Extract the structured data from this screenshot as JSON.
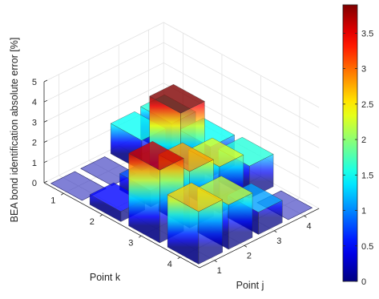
{
  "chart_data": {
    "type": "bar3d",
    "xlabel": "Point j",
    "ylabel": "Point k",
    "zlabel": "BEA bond identification absolute error [%]",
    "j_ticks": [
      "1",
      "2",
      "3",
      "4"
    ],
    "k_ticks": [
      "1",
      "2",
      "3",
      "4"
    ],
    "z_ticks": [
      "0",
      "1",
      "2",
      "3",
      "4",
      "5"
    ],
    "zlim": [
      0,
      5
    ],
    "colorbar": {
      "range": [
        0,
        3.9
      ],
      "ticks": [
        "0",
        "0.5",
        "1",
        "1.5",
        "2",
        "2.5",
        "3",
        "3.5"
      ],
      "colormap": "jet"
    },
    "grid": true,
    "bars": [
      {
        "j": 1,
        "k": 1,
        "value": 0
      },
      {
        "j": 1,
        "k": 2,
        "value": 0
      },
      {
        "j": 1,
        "k": 3,
        "value": 1.5
      },
      {
        "j": 1,
        "k": 4,
        "value": 1.6
      },
      {
        "j": 2,
        "k": 1,
        "value": 0.5
      },
      {
        "j": 2,
        "k": 2,
        "value": 0.8
      },
      {
        "j": 2,
        "k": 3,
        "value": 3.9
      },
      {
        "j": 2,
        "k": 4,
        "value": 1.5
      },
      {
        "j": 3,
        "k": 1,
        "value": 3.6
      },
      {
        "j": 3,
        "k": 2,
        "value": 2.8
      },
      {
        "j": 3,
        "k": 3,
        "value": 2.3
      },
      {
        "j": 3,
        "k": 4,
        "value": 1.6
      },
      {
        "j": 4,
        "k": 1,
        "value": 2.6
      },
      {
        "j": 4,
        "k": 2,
        "value": 2.2
      },
      {
        "j": 4,
        "k": 3,
        "value": 1.1
      },
      {
        "j": 4,
        "k": 4,
        "value": 0
      }
    ]
  }
}
